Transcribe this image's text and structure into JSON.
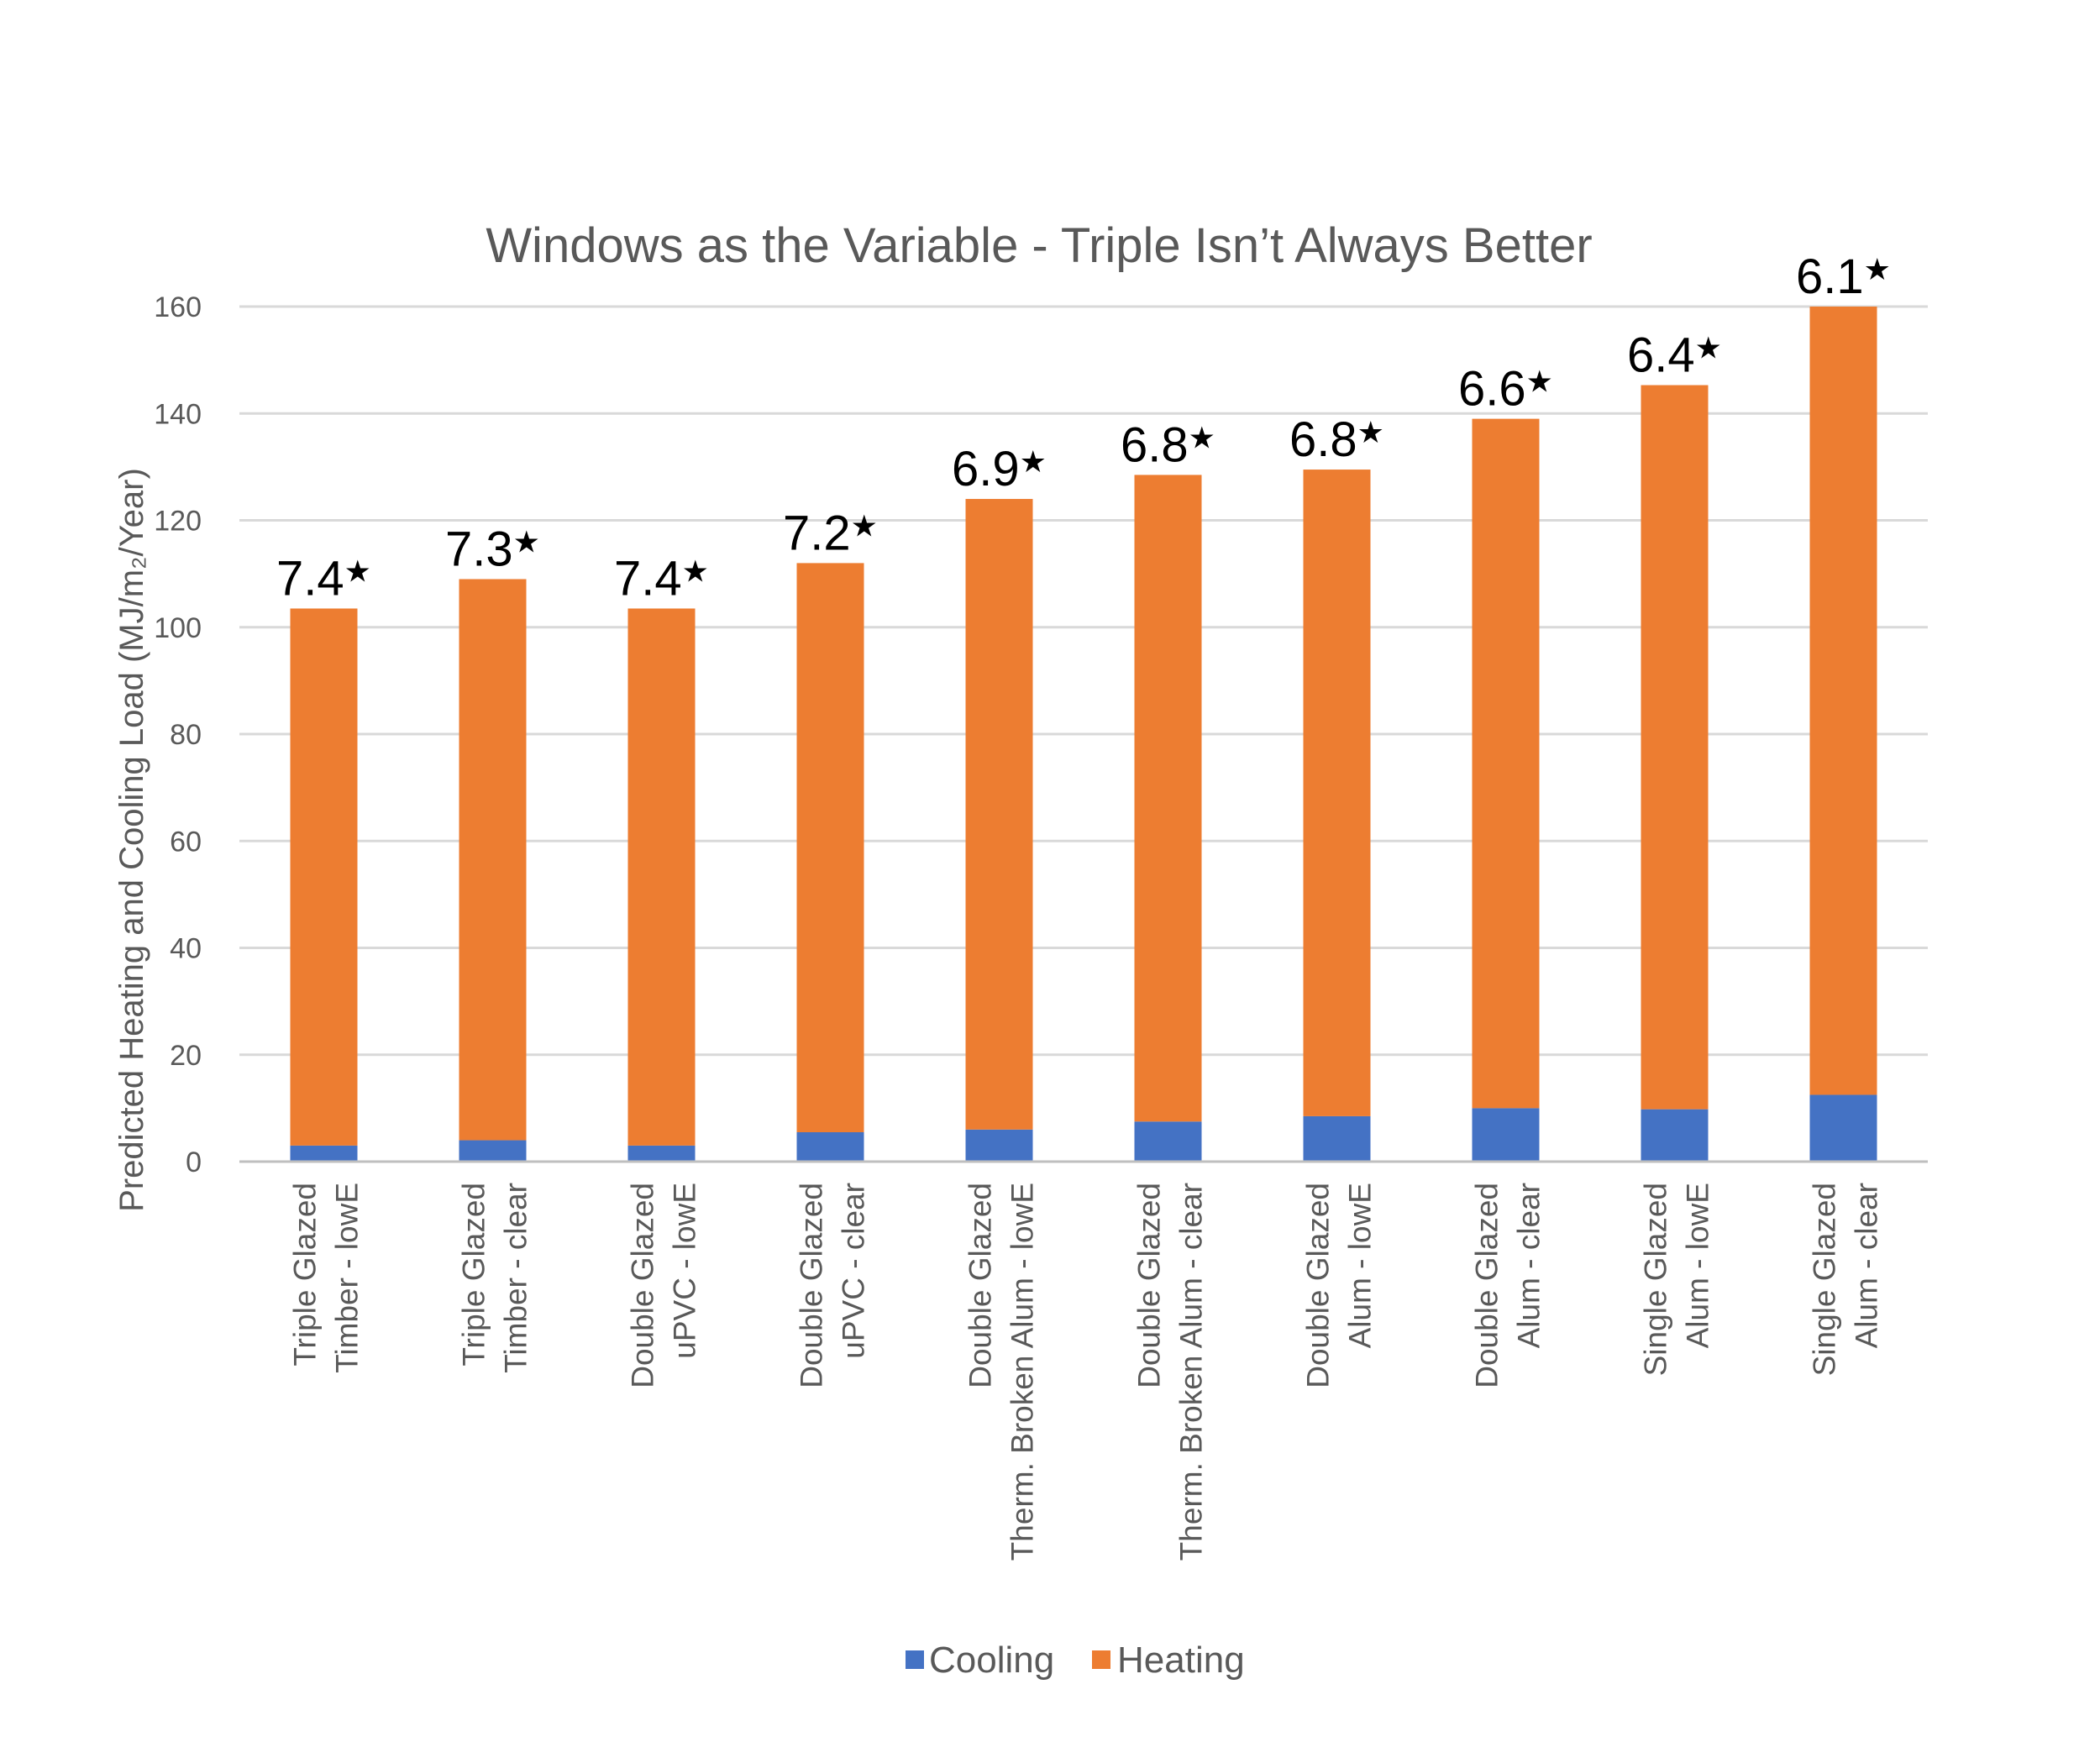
{
  "chart_data": {
    "type": "bar",
    "stacked": true,
    "title": "Windows as the Variable - Triple Isn’t Always Better",
    "ylabel": "Predicted Heating and Cooling Load (MJ/m₂/Year)",
    "xlabel": "",
    "ylim": [
      0,
      160
    ],
    "yticks": [
      0,
      20,
      40,
      60,
      80,
      100,
      120,
      140,
      160
    ],
    "grid": true,
    "legend_position": "bottom",
    "categories": [
      [
        "Triple Glazed",
        "Timber - lowE"
      ],
      [
        "Triple Glazed",
        "Timber - clear"
      ],
      [
        "Double Glazed",
        "uPVC - lowE"
      ],
      [
        "Double Glazed",
        "uPVC - clear"
      ],
      [
        "Double Glazed",
        "Therm. Broken Alum - lowE"
      ],
      [
        "Double Glazed",
        "Therm. Broken Alum - clear"
      ],
      [
        "Double Glazed",
        "Alum - lowE"
      ],
      [
        "Double Glazed",
        "Alum - clear"
      ],
      [
        "Single Glazed",
        "Alum - lowE"
      ],
      [
        "Single Glazed",
        "Alum - clear"
      ]
    ],
    "series": [
      {
        "name": "Cooling",
        "color": "#4472C4",
        "values": [
          3,
          4,
          3,
          5.5,
          6,
          7.5,
          8.5,
          10,
          9.8,
          12.5
        ]
      },
      {
        "name": "Heating",
        "color": "#ED7D31",
        "values": [
          100.5,
          105,
          100.5,
          106.5,
          118,
          121,
          121,
          129,
          135.5,
          147.5
        ]
      }
    ],
    "annotations": [
      "7.4",
      "7.3",
      "7.4",
      "7.2",
      "6.9",
      "6.8",
      "6.8",
      "6.6",
      "6.4",
      "6.1"
    ],
    "annotation_suffix": "★"
  },
  "legend": {
    "cooling": "Cooling",
    "heating": "Heating"
  },
  "colors": {
    "grid": "#D9D9D9",
    "axis": "#BFBFBF"
  }
}
